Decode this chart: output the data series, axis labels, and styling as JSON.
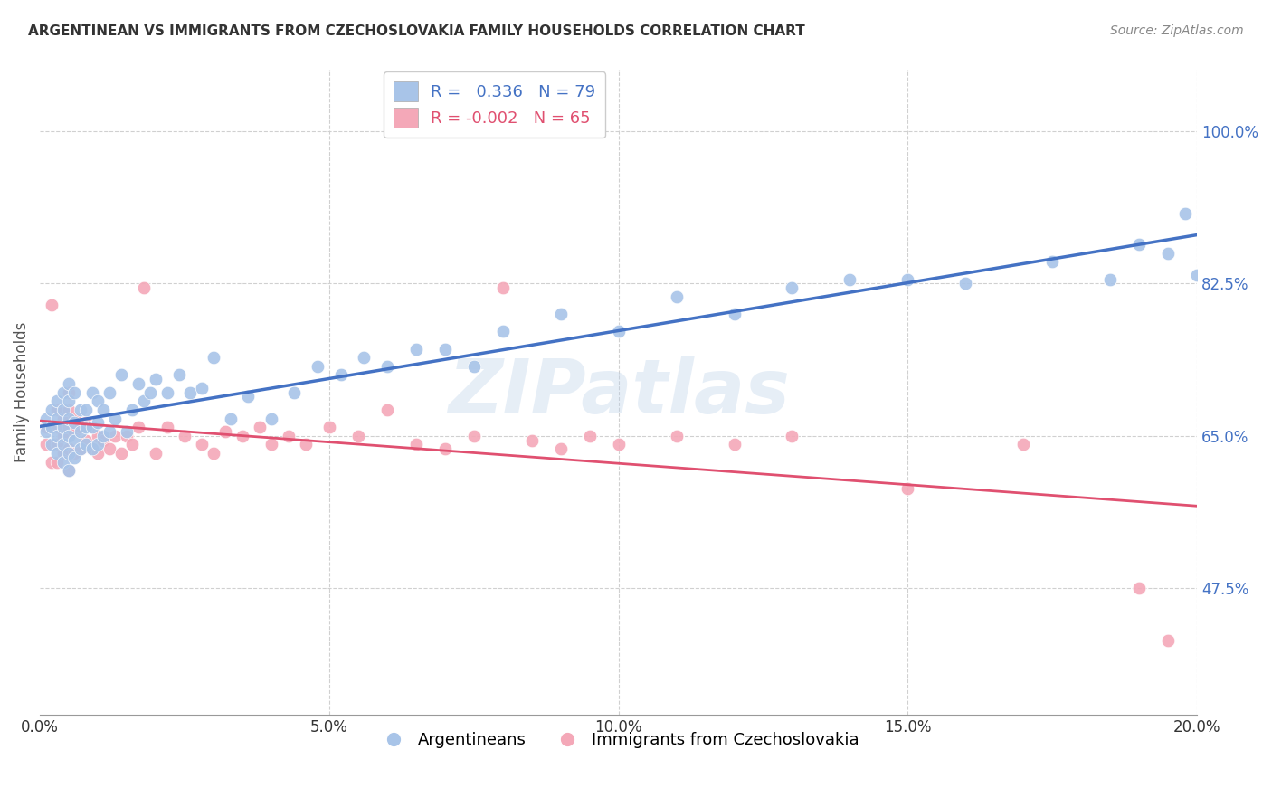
{
  "title": "ARGENTINEAN VS IMMIGRANTS FROM CZECHOSLOVAKIA FAMILY HOUSEHOLDS CORRELATION CHART",
  "source": "Source: ZipAtlas.com",
  "xlabel_ticks": [
    "0.0%",
    "5.0%",
    "10.0%",
    "15.0%",
    "20.0%"
  ],
  "xlabel_vals": [
    0.0,
    0.05,
    0.1,
    0.15,
    0.2
  ],
  "ylabel_ticks": [
    "47.5%",
    "65.0%",
    "82.5%",
    "100.0%"
  ],
  "ylabel_vals": [
    0.475,
    0.65,
    0.825,
    1.0
  ],
  "xlim": [
    0.0,
    0.2
  ],
  "ylim": [
    0.33,
    1.07
  ],
  "blue_R": 0.336,
  "blue_N": 79,
  "pink_R": -0.002,
  "pink_N": 65,
  "blue_label": "Argentineans",
  "pink_label": "Immigrants from Czechoslovakia",
  "blue_color": "#a8c4e8",
  "pink_color": "#f4a8b8",
  "blue_line_color": "#4472c4",
  "pink_line_color": "#e05070",
  "watermark": "ZIPatlas",
  "blue_x": [
    0.001,
    0.001,
    0.002,
    0.002,
    0.002,
    0.003,
    0.003,
    0.003,
    0.003,
    0.004,
    0.004,
    0.004,
    0.004,
    0.004,
    0.005,
    0.005,
    0.005,
    0.005,
    0.005,
    0.005,
    0.006,
    0.006,
    0.006,
    0.006,
    0.007,
    0.007,
    0.007,
    0.008,
    0.008,
    0.008,
    0.009,
    0.009,
    0.009,
    0.01,
    0.01,
    0.01,
    0.011,
    0.011,
    0.012,
    0.012,
    0.013,
    0.014,
    0.015,
    0.016,
    0.017,
    0.018,
    0.019,
    0.02,
    0.022,
    0.024,
    0.026,
    0.028,
    0.03,
    0.033,
    0.036,
    0.04,
    0.044,
    0.048,
    0.052,
    0.056,
    0.06,
    0.065,
    0.07,
    0.075,
    0.08,
    0.09,
    0.1,
    0.11,
    0.12,
    0.13,
    0.14,
    0.15,
    0.16,
    0.175,
    0.185,
    0.19,
    0.195,
    0.198,
    0.2
  ],
  "blue_y": [
    0.655,
    0.67,
    0.64,
    0.66,
    0.68,
    0.63,
    0.65,
    0.67,
    0.69,
    0.62,
    0.64,
    0.66,
    0.68,
    0.7,
    0.61,
    0.63,
    0.65,
    0.67,
    0.69,
    0.71,
    0.625,
    0.645,
    0.665,
    0.7,
    0.635,
    0.655,
    0.68,
    0.64,
    0.66,
    0.68,
    0.635,
    0.66,
    0.7,
    0.64,
    0.665,
    0.69,
    0.65,
    0.68,
    0.655,
    0.7,
    0.67,
    0.72,
    0.655,
    0.68,
    0.71,
    0.69,
    0.7,
    0.715,
    0.7,
    0.72,
    0.7,
    0.705,
    0.74,
    0.67,
    0.695,
    0.67,
    0.7,
    0.73,
    0.72,
    0.74,
    0.73,
    0.75,
    0.75,
    0.73,
    0.77,
    0.79,
    0.77,
    0.81,
    0.79,
    0.82,
    0.83,
    0.83,
    0.825,
    0.85,
    0.83,
    0.87,
    0.86,
    0.905,
    0.835
  ],
  "pink_x": [
    0.001,
    0.001,
    0.002,
    0.002,
    0.002,
    0.003,
    0.003,
    0.003,
    0.003,
    0.004,
    0.004,
    0.004,
    0.005,
    0.005,
    0.005,
    0.005,
    0.005,
    0.006,
    0.006,
    0.006,
    0.007,
    0.007,
    0.008,
    0.008,
    0.009,
    0.009,
    0.01,
    0.01,
    0.011,
    0.012,
    0.013,
    0.014,
    0.015,
    0.016,
    0.017,
    0.018,
    0.02,
    0.022,
    0.025,
    0.028,
    0.03,
    0.032,
    0.035,
    0.038,
    0.04,
    0.043,
    0.046,
    0.05,
    0.055,
    0.06,
    0.065,
    0.07,
    0.075,
    0.08,
    0.085,
    0.09,
    0.095,
    0.1,
    0.11,
    0.12,
    0.13,
    0.15,
    0.17,
    0.19,
    0.195
  ],
  "pink_y": [
    0.64,
    0.66,
    0.62,
    0.66,
    0.8,
    0.62,
    0.64,
    0.66,
    0.68,
    0.63,
    0.65,
    0.67,
    0.61,
    0.635,
    0.66,
    0.68,
    0.7,
    0.63,
    0.655,
    0.67,
    0.635,
    0.66,
    0.645,
    0.665,
    0.635,
    0.66,
    0.63,
    0.65,
    0.645,
    0.635,
    0.65,
    0.63,
    0.65,
    0.64,
    0.66,
    0.82,
    0.63,
    0.66,
    0.65,
    0.64,
    0.63,
    0.655,
    0.65,
    0.66,
    0.64,
    0.65,
    0.64,
    0.66,
    0.65,
    0.68,
    0.64,
    0.635,
    0.65,
    0.82,
    0.645,
    0.635,
    0.65,
    0.64,
    0.65,
    0.64,
    0.65,
    0.59,
    0.64,
    0.475,
    0.415
  ]
}
